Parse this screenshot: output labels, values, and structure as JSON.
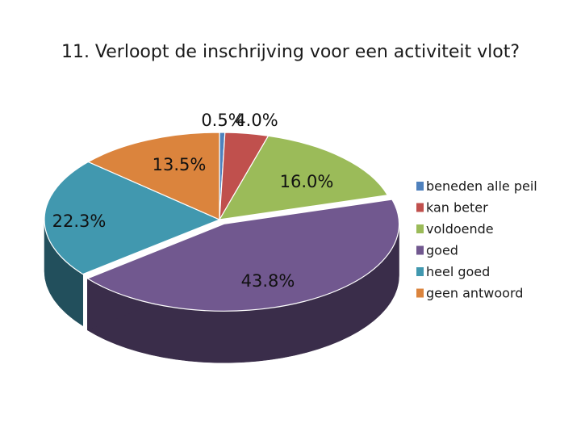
{
  "chart_data": {
    "type": "pie",
    "title": "11. Verloopt de inschrijving voor een activiteit vlot?",
    "slices": [
      {
        "label": "beneden alle peil",
        "value": 0.5,
        "display": "0.5%",
        "color": "#4f81bd",
        "side": "#35577f"
      },
      {
        "label": "kan beter",
        "value": 4.0,
        "display": "4.0%",
        "color": "#c0504d",
        "side": "#7e3432"
      },
      {
        "label": "voldoende",
        "value": 16.0,
        "display": "16.0%",
        "color": "#9bbb59",
        "side": "#657b3a"
      },
      {
        "label": "goed",
        "value": 43.8,
        "display": "43.8%",
        "color": "#71588f",
        "side": "#3a2d4a"
      },
      {
        "label": "heel goed",
        "value": 22.3,
        "display": "22.3%",
        "color": "#4198af",
        "side": "#224f5c"
      },
      {
        "label": "geen antwoord",
        "value": 13.5,
        "display": "13.5%",
        "color": "#db843d",
        "side": "#8f5528"
      }
    ],
    "legend_position": "right",
    "style": "3d"
  }
}
